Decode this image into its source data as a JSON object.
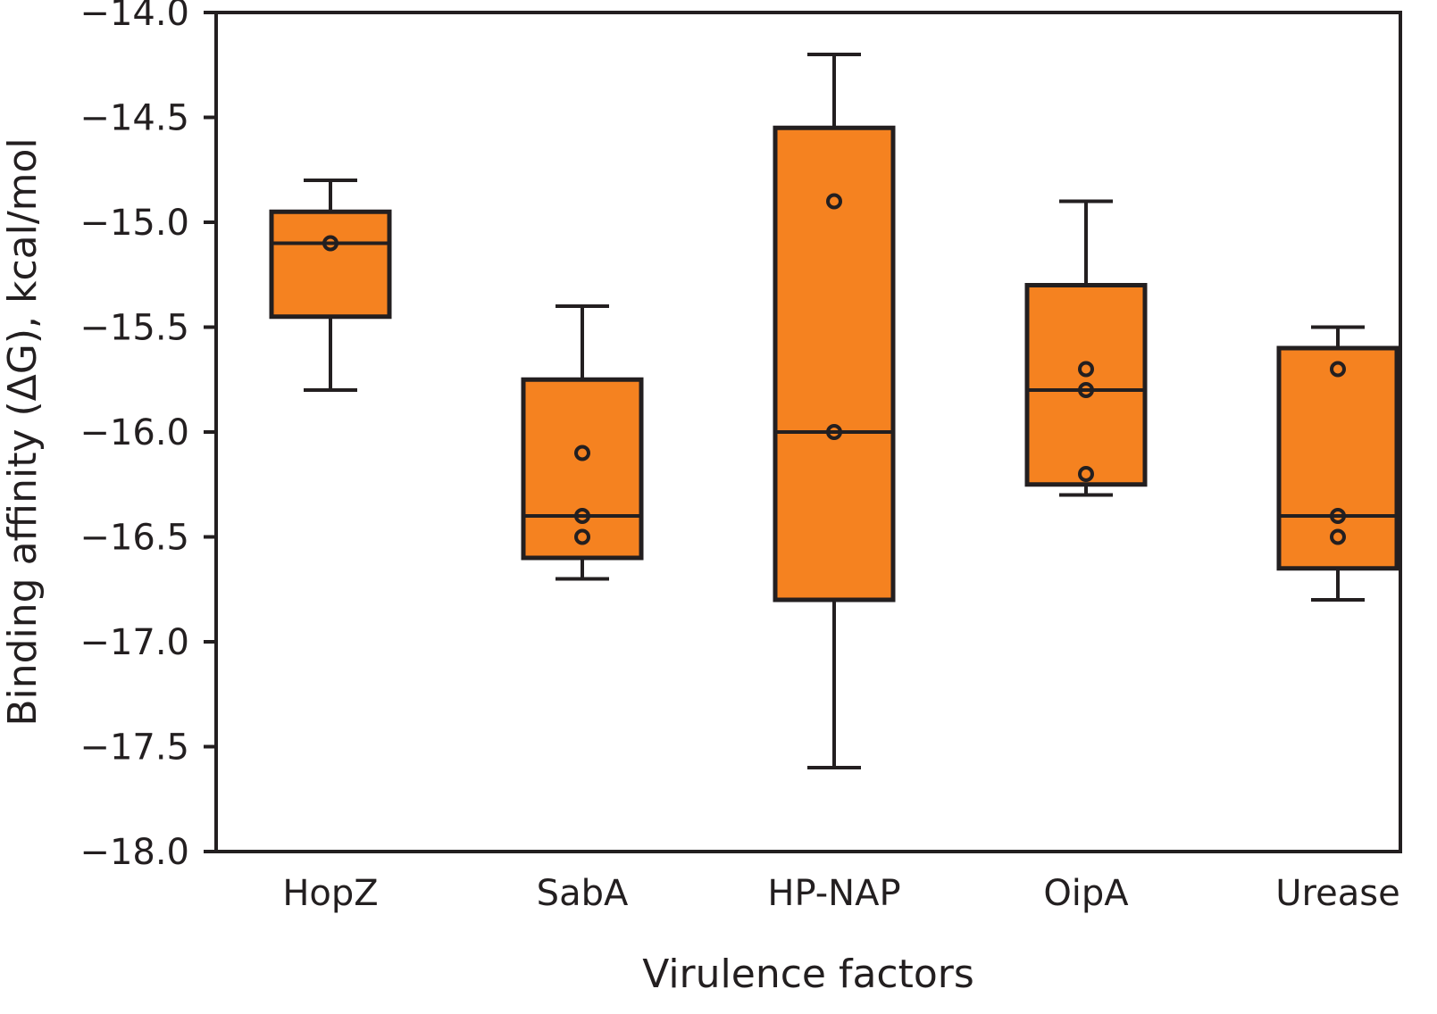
{
  "chart_data": {
    "type": "box",
    "title": "",
    "xlabel": "Virulence factors",
    "ylabel": "Binding affinity (ΔG), kcal/mol",
    "ylim": [
      -18.0,
      -14.0
    ],
    "yticks": [
      -14.0,
      -14.5,
      -15.0,
      -15.5,
      -16.0,
      -16.5,
      -17.0,
      -17.5,
      -18.0
    ],
    "ytick_labels": [
      "−14.0",
      "−14.5",
      "−15.0",
      "−15.5",
      "−16.0",
      "−16.5",
      "−17.0",
      "−17.5",
      "−18.0"
    ],
    "grid": false,
    "legend": "none",
    "box_color": "#f58220",
    "line_color": "#231f20",
    "categories": [
      "HopZ",
      "SabA",
      "HP-NAP",
      "OipA",
      "Urease"
    ],
    "series": [
      {
        "name": "HopZ",
        "whisker_high": -14.8,
        "q3": -14.95,
        "median": -15.1,
        "q1": -15.45,
        "whisker_low": -15.8,
        "points": [
          -15.1
        ]
      },
      {
        "name": "SabA",
        "whisker_high": -15.4,
        "q3": -15.75,
        "median": -16.4,
        "q1": -16.6,
        "whisker_low": -16.7,
        "points": [
          -16.1,
          -16.4,
          -16.5
        ]
      },
      {
        "name": "HP-NAP",
        "whisker_high": -14.2,
        "q3": -14.55,
        "median": -16.0,
        "q1": -16.8,
        "whisker_low": -17.6,
        "points": [
          -14.9,
          -16.0
        ]
      },
      {
        "name": "OipA",
        "whisker_high": -14.9,
        "q3": -15.3,
        "median": -15.8,
        "q1": -16.25,
        "whisker_low": -16.3,
        "points": [
          -15.7,
          -15.8,
          -16.2
        ]
      },
      {
        "name": "Urease",
        "whisker_high": -15.5,
        "q3": -15.6,
        "median": -16.4,
        "q1": -16.65,
        "whisker_low": -16.8,
        "points": [
          -15.7,
          -16.4,
          -16.5
        ]
      }
    ]
  }
}
